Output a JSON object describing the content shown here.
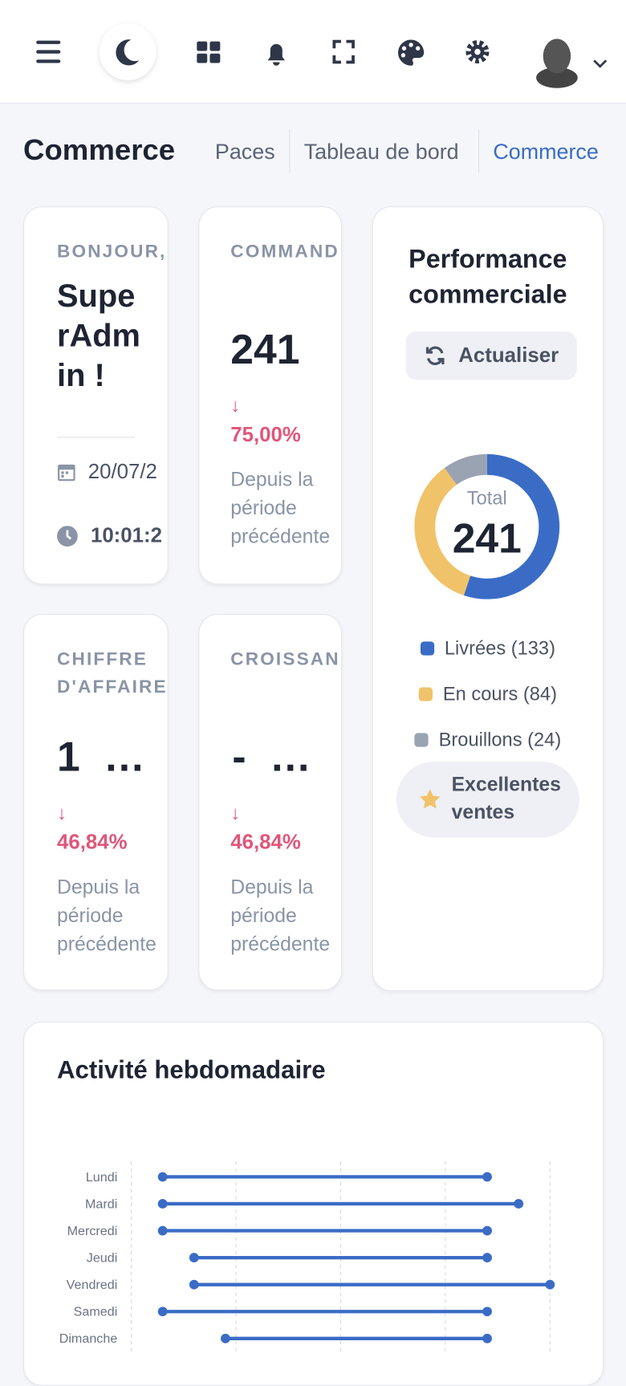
{
  "breadcrumb": {
    "title": "Commerce",
    "items": [
      "Paces",
      "Tableau de bord",
      "Commerce"
    ]
  },
  "cards": {
    "greeting": {
      "label": "BONJOUR,",
      "name": "SuperAdmin !",
      "date": "20/07/2",
      "time": "10:01:2"
    },
    "orders": {
      "label": "COMMAND",
      "value": "241",
      "change": "75,00%",
      "note": "Depuis la période précédente"
    },
    "revenue": {
      "label": "CHIFFRE D'AFFAIRE",
      "value": "1 …",
      "change": "46,84%",
      "note": "Depuis la période précédente"
    },
    "growth": {
      "label": "CROISSAN",
      "value": "- …",
      "change": "46,84%",
      "note": "Depuis la période précédente"
    }
  },
  "performance": {
    "title": "Performance commerciale",
    "button": "Actualiser",
    "badge": "Excellentes ventes",
    "chart_data": {
      "type": "donut",
      "center_label": "Total",
      "total": 241,
      "categories": [
        "Livrées (133)",
        "En cours (84)",
        "Brouillons (24)"
      ],
      "values": [
        133,
        84,
        24
      ],
      "colors": [
        "#3a6cc6",
        "#f0c36a",
        "#9aa3b2"
      ]
    }
  },
  "weekly": {
    "title": "Activité hebdomadaire",
    "chart_data": {
      "type": "dumbbell",
      "categories": [
        "Lundi",
        "Mardi",
        "Mercredi",
        "Jeudi",
        "Vendredi",
        "Samedi",
        "Dimanche"
      ],
      "start": [
        3,
        3,
        3,
        6,
        6,
        3,
        9
      ],
      "end": [
        34,
        37,
        34,
        34,
        40,
        34,
        34
      ],
      "color": "#3a6cc6",
      "xlim": [
        0,
        40
      ],
      "xticks": [
        0,
        10,
        20,
        30,
        40
      ],
      "grid": true
    }
  }
}
